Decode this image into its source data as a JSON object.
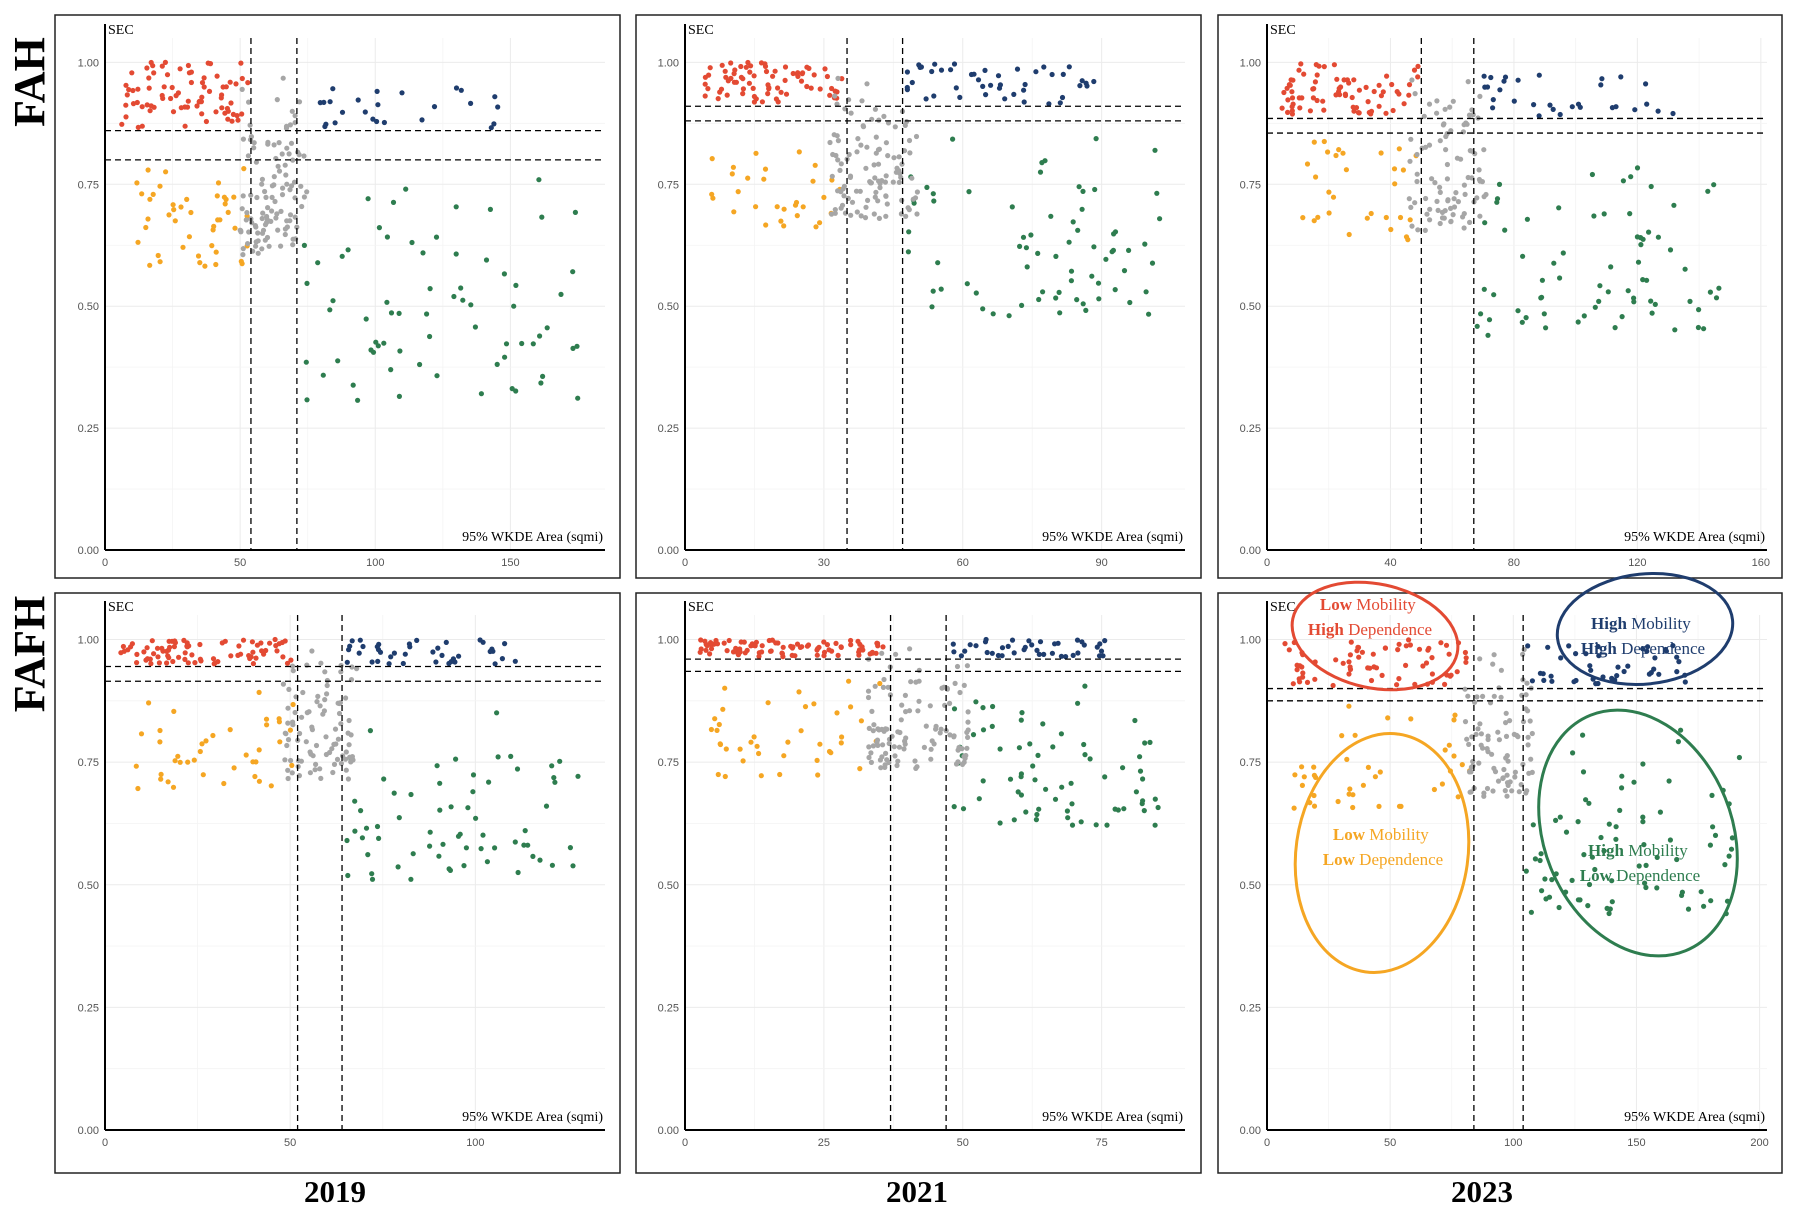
{
  "row_labels": [
    "FAH",
    "FAFH"
  ],
  "col_labels": [
    "2019",
    "2021",
    "2023"
  ],
  "x_axis_label": "95% WKDE Area (sqmi)",
  "y_axis_label": "SEC",
  "colors": {
    "low_mobility_high_dependence": "#e34a33",
    "high_mobility_high_dependence": "#1f3d6e",
    "low_mobility_low_dependence": "#f5a623",
    "high_mobility_low_dependence": "#2e7d4f",
    "middle": "#a6a6a6"
  },
  "annotations": [
    {
      "bold": "Low",
      "text1": " Mobility",
      "bold2": "High",
      "text2": " Dependence",
      "color": "#e34a33"
    },
    {
      "bold": "High",
      "text1": " Mobility",
      "bold2": "High",
      "text2": " Dependence",
      "color": "#1f3d6e"
    },
    {
      "bold": "Low",
      "text1": " Mobility",
      "bold2": "Low",
      "text2": " Dependence",
      "color": "#f5a623"
    },
    {
      "bold": "High",
      "text1": " Mobility",
      "bold2": "Low",
      "text2": " Dependence",
      "color": "#2e7d4f"
    }
  ],
  "chart_data": [
    {
      "type": "scatter",
      "row": "FAH",
      "year": "2019",
      "xlim": [
        0,
        185
      ],
      "ylim": [
        0,
        1.05
      ],
      "xticks": [
        0,
        50,
        100,
        150
      ],
      "yticks": [
        "0.00",
        "0.25",
        "0.50",
        "0.75",
        "1.00"
      ],
      "vlines": [
        54,
        71
      ],
      "hlines": [
        0.86,
        0.8
      ],
      "seed": 19,
      "n_red": 80,
      "n_blue": 25,
      "n_orange": 45,
      "n_green": 70,
      "n_gray": 110,
      "green_ymin": 0.3
    },
    {
      "type": "scatter",
      "row": "FAH",
      "year": "2021",
      "xlim": [
        0,
        108
      ],
      "ylim": [
        0,
        1.05
      ],
      "xticks": [
        0,
        30,
        60,
        90
      ],
      "yticks": [
        "0.00",
        "0.25",
        "0.50",
        "0.75",
        "1.00"
      ],
      "vlines": [
        35,
        47
      ],
      "hlines": [
        0.91,
        0.88
      ],
      "seed": 21,
      "n_red": 75,
      "n_blue": 45,
      "n_orange": 30,
      "n_green": 70,
      "n_gray": 110,
      "green_ymin": 0.48
    },
    {
      "type": "scatter",
      "row": "FAH",
      "year": "2023",
      "xlim": [
        0,
        162
      ],
      "ylim": [
        0,
        1.05
      ],
      "xticks": [
        0,
        40,
        80,
        120,
        160
      ],
      "yticks": [
        "0.00",
        "0.25",
        "0.50",
        "0.75",
        "1.00"
      ],
      "vlines": [
        50,
        67
      ],
      "hlines": [
        0.885,
        0.855
      ],
      "seed": 23,
      "n_red": 75,
      "n_blue": 30,
      "n_orange": 30,
      "n_green": 70,
      "n_gray": 90,
      "green_ymin": 0.44
    },
    {
      "type": "scatter",
      "row": "FAFH",
      "year": "2019",
      "xlim": [
        0,
        135
      ],
      "ylim": [
        0,
        1.05
      ],
      "xticks": [
        0,
        50,
        100
      ],
      "yticks": [
        "0.00",
        "0.25",
        "0.50",
        "0.75",
        "1.00"
      ],
      "vlines": [
        52,
        64
      ],
      "hlines": [
        0.945,
        0.915
      ],
      "seed": 119,
      "n_red": 80,
      "n_blue": 40,
      "n_orange": 40,
      "n_green": 65,
      "n_gray": 90,
      "green_ymin": 0.51
    },
    {
      "type": "scatter",
      "row": "FAFH",
      "year": "2021",
      "xlim": [
        0,
        90
      ],
      "ylim": [
        0,
        1.05
      ],
      "xticks": [
        0,
        25,
        50,
        75
      ],
      "yticks": [
        "0.00",
        "0.25",
        "0.50",
        "0.75",
        "1.00"
      ],
      "vlines": [
        37,
        47
      ],
      "hlines": [
        0.96,
        0.935
      ],
      "seed": 121,
      "n_red": 90,
      "n_blue": 40,
      "n_orange": 40,
      "n_green": 70,
      "n_gray": 110,
      "green_ymin": 0.62
    },
    {
      "type": "scatter",
      "row": "FAFH",
      "year": "2023",
      "xlim": [
        0,
        203
      ],
      "ylim": [
        0,
        1.05
      ],
      "xticks": [
        0,
        50,
        100,
        150,
        200
      ],
      "yticks": [
        "0.00",
        "0.25",
        "0.50",
        "0.75",
        "1.00"
      ],
      "vlines": [
        84,
        104
      ],
      "hlines": [
        0.9,
        0.875
      ],
      "seed": 123,
      "n_red": 70,
      "n_blue": 45,
      "n_orange": 40,
      "n_green": 80,
      "n_gray": 90,
      "green_ymin": 0.44
    }
  ]
}
